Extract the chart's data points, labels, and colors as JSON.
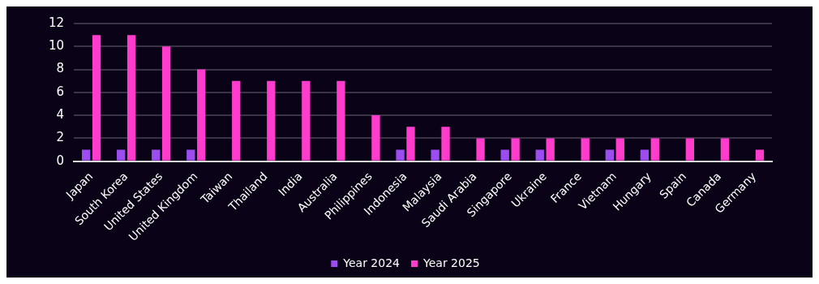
{
  "chart_data": {
    "type": "bar",
    "categories": [
      "Japan",
      "South Korea",
      "United States",
      "United Kingdom",
      "Taiwan",
      "Thailand",
      "India",
      "Australia",
      "Philippines",
      "Indonesia",
      "Malaysia",
      "Saudi Arabia",
      "Singapore",
      "Ukraine",
      "France",
      "Vietnam",
      "Hungary",
      "Spain",
      "Canada",
      "Germany"
    ],
    "series": [
      {
        "name": "Year 2024",
        "color": "#9b4df0",
        "values": [
          1,
          1,
          1,
          1,
          0,
          0,
          0,
          0,
          0,
          1,
          1,
          0,
          1,
          1,
          0,
          1,
          1,
          0,
          0,
          0
        ]
      },
      {
        "name": "Year 2025",
        "color": "#ff3ccc",
        "values": [
          11,
          11,
          10,
          8,
          7,
          7,
          7,
          7,
          4,
          3,
          3,
          2,
          2,
          2,
          2,
          2,
          2,
          2,
          2,
          1
        ]
      }
    ],
    "ylim": [
      0,
      12
    ],
    "yticks": [
      0,
      2,
      4,
      6,
      8,
      10,
      12
    ],
    "grid": "y",
    "legend": "bottom"
  }
}
